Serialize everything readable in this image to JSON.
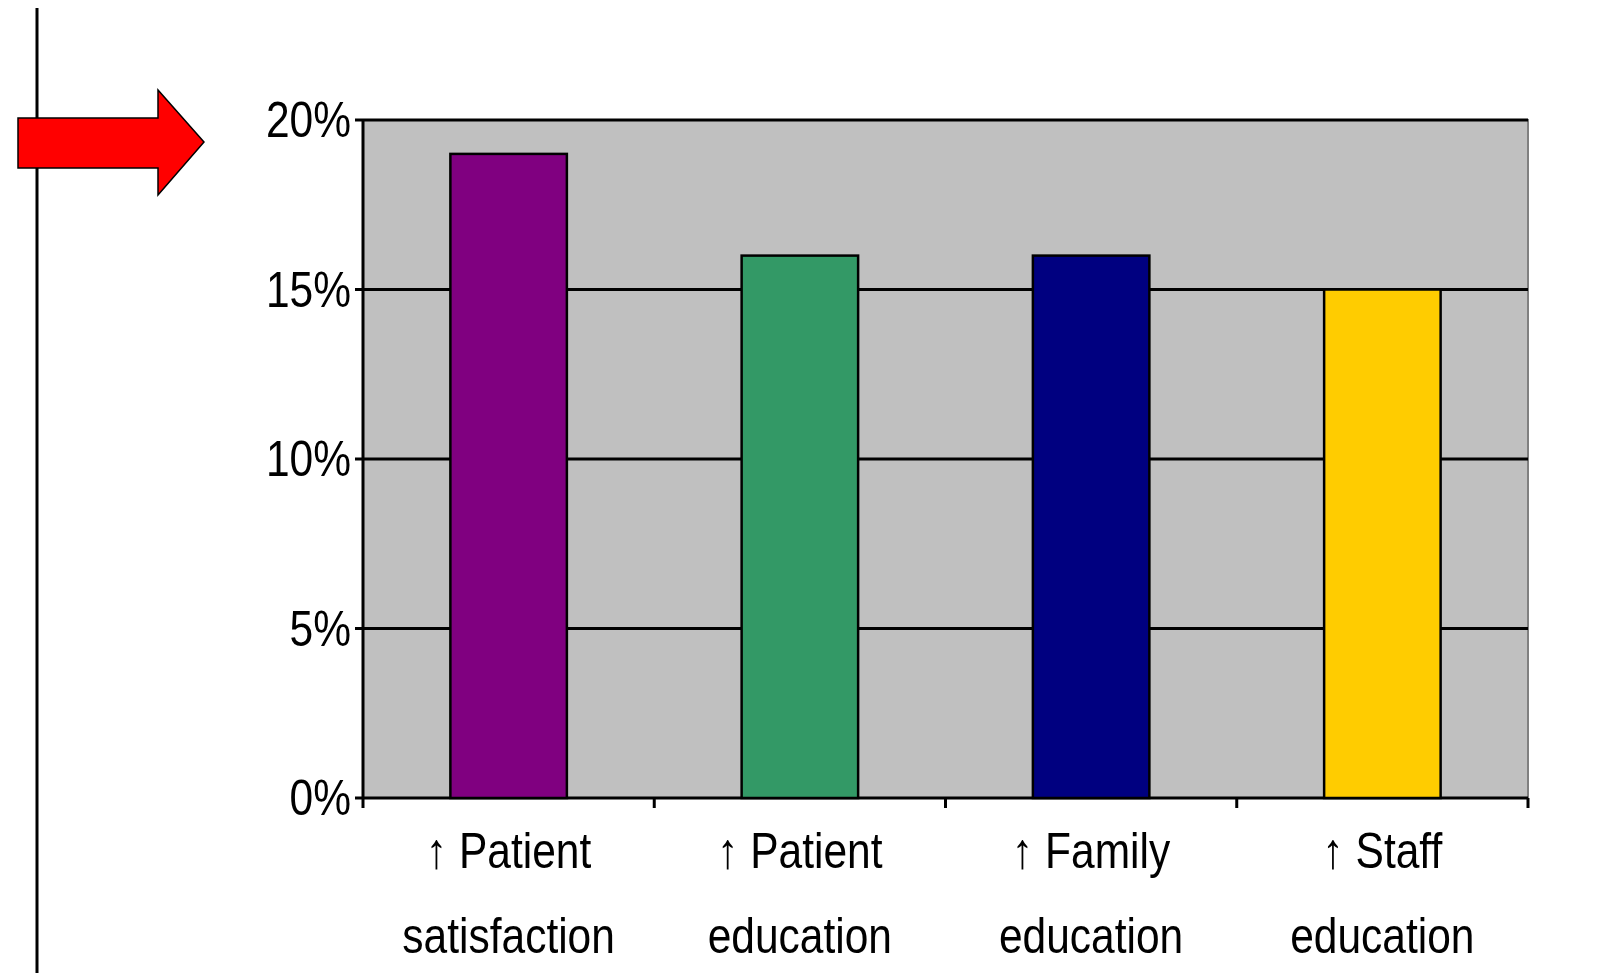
{
  "chart_data": {
    "type": "bar",
    "categories": [
      "↑ Patient satisfaction",
      "↑ Patient education",
      "↑ Family education",
      "↑ Staff education"
    ],
    "values": [
      19,
      16,
      16,
      15
    ],
    "colors": [
      "#800080",
      "#339966",
      "#000080",
      "#ffcc00"
    ],
    "ylim": [
      0,
      20
    ],
    "yticks": [
      {
        "value": 0,
        "label": "0%"
      },
      {
        "value": 5,
        "label": "5%"
      },
      {
        "value": 10,
        "label": "10%"
      },
      {
        "value": 15,
        "label": "15%"
      },
      {
        "value": 20,
        "label": "20%"
      }
    ],
    "grid": "y"
  }
}
